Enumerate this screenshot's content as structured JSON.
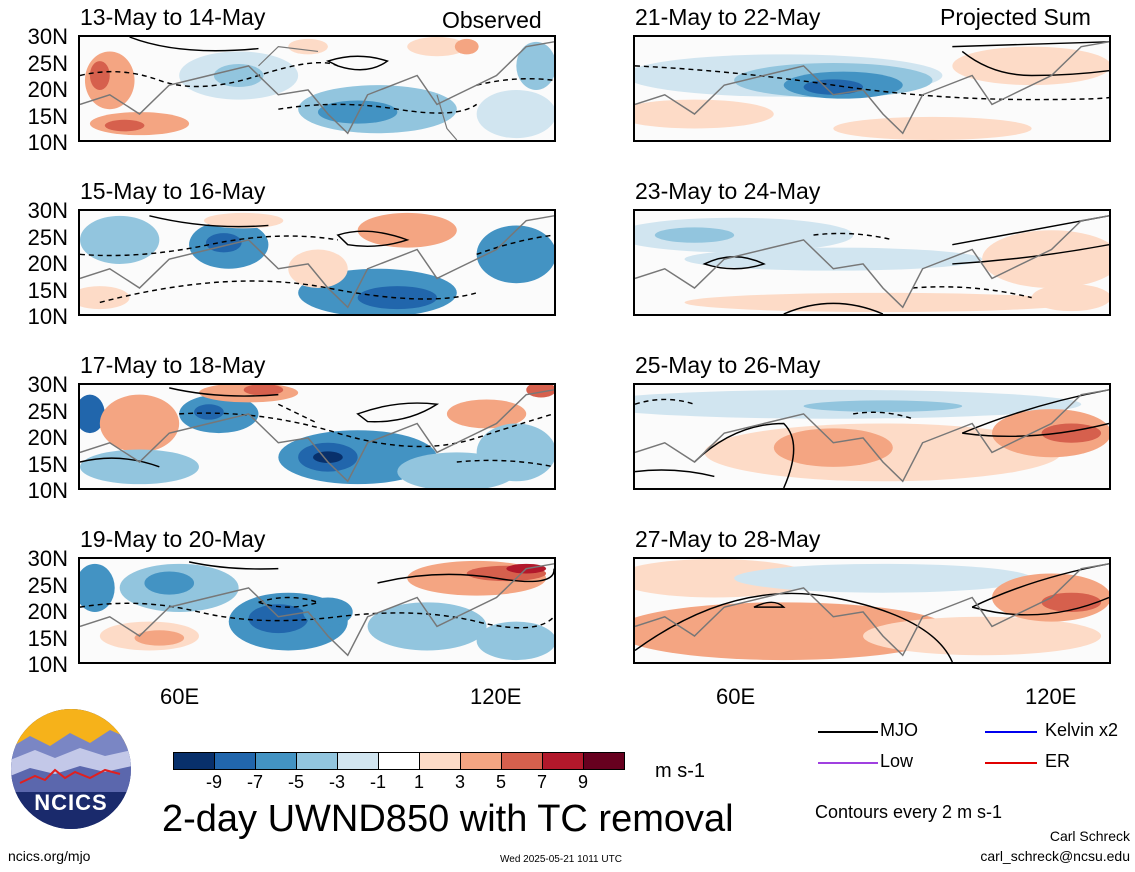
{
  "labels": {
    "observed": "Observed",
    "projected": "Projected Sum"
  },
  "left_panels": [
    {
      "date": "13-May to 14-May"
    },
    {
      "date": "15-May to 16-May"
    },
    {
      "date": "17-May to 18-May"
    },
    {
      "date": "19-May to 20-May"
    }
  ],
  "right_panels": [
    {
      "date": "21-May to 22-May"
    },
    {
      "date": "23-May to 24-May"
    },
    {
      "date": "25-May to 26-May"
    },
    {
      "date": "27-May to 28-May"
    }
  ],
  "lat_labels": [
    "30N",
    "25N",
    "20N",
    "15N",
    "10N"
  ],
  "lon_labels": [
    "60E",
    "120E"
  ],
  "colorbar": {
    "colors": [
      "#08306b",
      "#2166ac",
      "#4393c3",
      "#92c5de",
      "#d1e5f0",
      "#ffffff",
      "#fddbc7",
      "#f4a582",
      "#d6604d",
      "#b2182b",
      "#67001f"
    ],
    "ticks": [
      "-9",
      "-7",
      "-5",
      "-3",
      "-1",
      "1",
      "3",
      "5",
      "7",
      "9"
    ],
    "units": "m s-1"
  },
  "legend": [
    {
      "label": "MJO",
      "color": "#000000"
    },
    {
      "label": "Kelvin x2",
      "color": "#0000ee"
    },
    {
      "label": "Low",
      "color": "#a040e0"
    },
    {
      "label": "ER",
      "color": "#e00000"
    }
  ],
  "main_title": "2-day UWND850 with TC removal",
  "contour_note": "Contours every 2 m s-1",
  "author": "Carl Schreck",
  "email": "carl_schreck@ncsu.edu",
  "site": "ncics.org/mjo",
  "timestamp": "Wed 2025-05-21 1011 UTC",
  "logo_text": "NCICS"
}
